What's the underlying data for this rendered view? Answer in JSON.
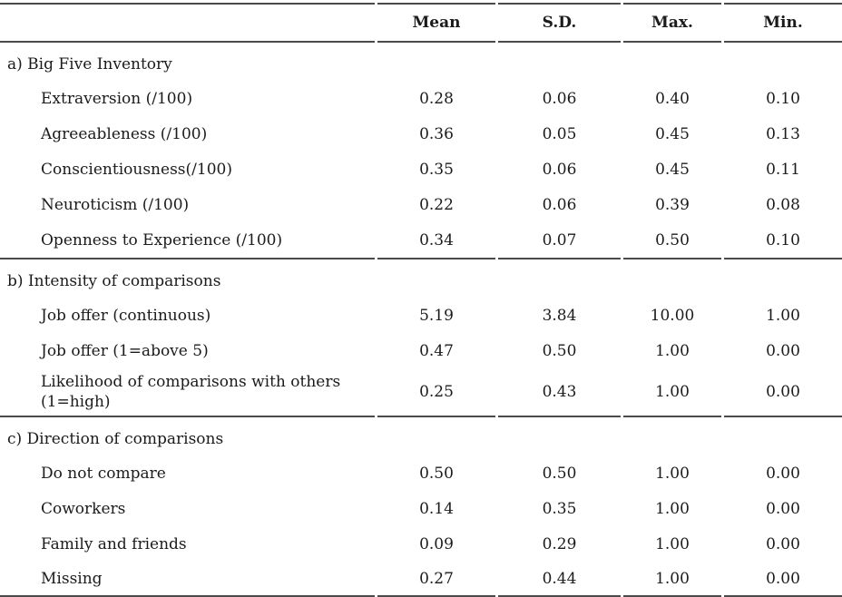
{
  "colors": {
    "rule": "#4a4a4a",
    "text": "#1b1b1b",
    "background": "#ffffff"
  },
  "header": {
    "corner": "",
    "cols": [
      "Mean",
      "S.D.",
      "Max.",
      "Min."
    ]
  },
  "sections": [
    {
      "title": "a) Big Five Inventory",
      "rows": [
        {
          "label": "Extraversion (/100)",
          "mean": "0.28",
          "sd": "0.06",
          "max": "0.40",
          "min": "0.10"
        },
        {
          "label": "Agreeableness (/100)",
          "mean": "0.36",
          "sd": "0.05",
          "max": "0.45",
          "min": "0.13"
        },
        {
          "label": "Conscientiousness(/100)",
          "mean": "0.35",
          "sd": "0.06",
          "max": "0.45",
          "min": "0.11"
        },
        {
          "label": "Neuroticism (/100)",
          "mean": "0.22",
          "sd": "0.06",
          "max": "0.39",
          "min": "0.08"
        },
        {
          "label": "Openness to Experience (/100)",
          "mean": "0.34",
          "sd": "0.07",
          "max": "0.50",
          "min": "0.10"
        }
      ]
    },
    {
      "title": "b) Intensity of comparisons",
      "rows": [
        {
          "label": "Job offer (continuous)",
          "mean": "5.19",
          "sd": "3.84",
          "max": "10.00",
          "min": "1.00"
        },
        {
          "label": "Job offer (1=above 5)",
          "mean": "0.47",
          "sd": "0.50",
          "max": "1.00",
          "min": "0.00"
        },
        {
          "label": "Likelihood of comparisons with others",
          "label2": "(1=high)",
          "mean": "0.25",
          "sd": "0.43",
          "max": "1.00",
          "min": "0.00"
        }
      ]
    },
    {
      "title": "c) Direction of comparisons",
      "rows": [
        {
          "label": "Do not compare",
          "mean": "0.50",
          "sd": "0.50",
          "max": "1.00",
          "min": "0.00"
        },
        {
          "label": "Coworkers",
          "mean": "0.14",
          "sd": "0.35",
          "max": "1.00",
          "min": "0.00"
        },
        {
          "label": "Family and friends",
          "mean": "0.09",
          "sd": "0.29",
          "max": "1.00",
          "min": "0.00"
        },
        {
          "label": "Missing",
          "mean": "0.27",
          "sd": "0.44",
          "max": "1.00",
          "min": "0.00"
        }
      ]
    }
  ]
}
